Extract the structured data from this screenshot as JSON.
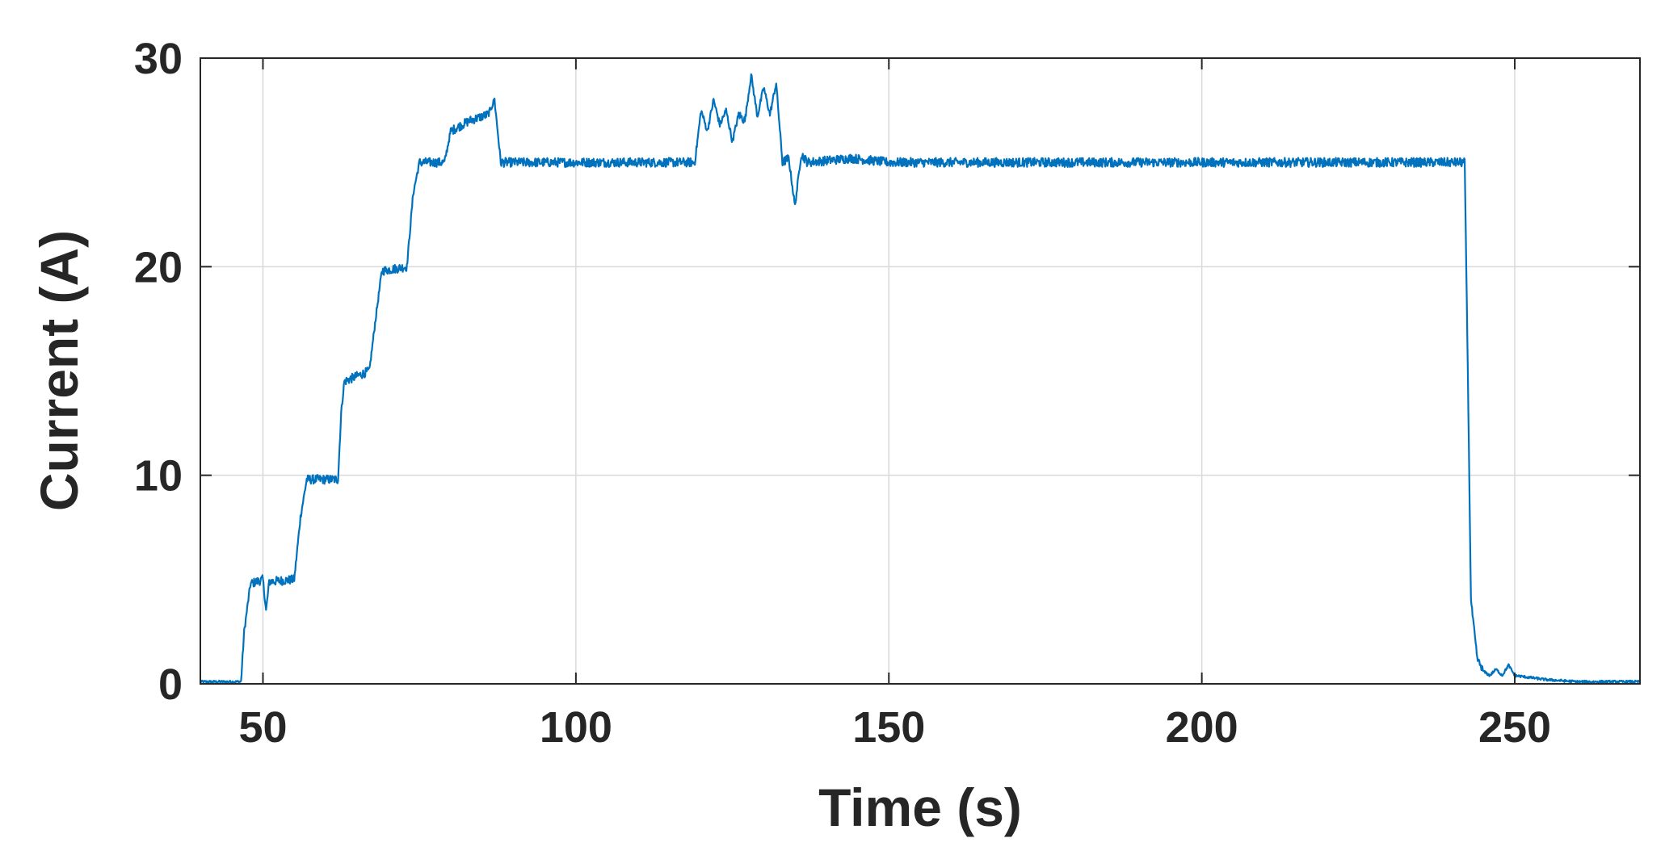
{
  "chart_data": {
    "type": "line",
    "title": "",
    "xlabel": "Time (s)",
    "ylabel": "Current (A)",
    "xlim": [
      40,
      270
    ],
    "ylim": [
      0,
      30
    ],
    "xticks": [
      50,
      100,
      150,
      200,
      250
    ],
    "yticks": [
      0,
      10,
      20,
      30
    ],
    "xtick_labels": [
      "50",
      "100",
      "150",
      "200",
      "250"
    ],
    "ytick_labels": [
      "0",
      "10",
      "20",
      "30"
    ],
    "grid": true,
    "legend": "none",
    "series": [
      {
        "color": "#0072BD",
        "points": [
          [
            40,
            0.1
          ],
          [
            46.5,
            0.1
          ],
          [
            47,
            2.5
          ],
          [
            48,
            4.8
          ],
          [
            50,
            5.0
          ],
          [
            50.5,
            3.5
          ],
          [
            51,
            4.9
          ],
          [
            55,
            5.0
          ],
          [
            56,
            8.0
          ],
          [
            57,
            9.8
          ],
          [
            62,
            9.8
          ],
          [
            62.5,
            13.0
          ],
          [
            63,
            14.5
          ],
          [
            67,
            15.0
          ],
          [
            68,
            17.5
          ],
          [
            69,
            19.8
          ],
          [
            73,
            20.0
          ],
          [
            74,
            23.5
          ],
          [
            75,
            25.0
          ],
          [
            79,
            25.0
          ],
          [
            80,
            26.5
          ],
          [
            83,
            27.0
          ],
          [
            86,
            27.3
          ],
          [
            87,
            28.0
          ],
          [
            88,
            25.0
          ],
          [
            100,
            25.0
          ],
          [
            110,
            25.0
          ],
          [
            119,
            25.0
          ],
          [
            120,
            27.5
          ],
          [
            121,
            26.5
          ],
          [
            122,
            28.0
          ],
          [
            123,
            26.8
          ],
          [
            124,
            27.5
          ],
          [
            125,
            26.0
          ],
          [
            126,
            27.3
          ],
          [
            127,
            27.0
          ],
          [
            128,
            29.2
          ],
          [
            129,
            27.2
          ],
          [
            130,
            28.6
          ],
          [
            131,
            27.3
          ],
          [
            132,
            28.8
          ],
          [
            133,
            25.0
          ],
          [
            134,
            25.2
          ],
          [
            135,
            22.9
          ],
          [
            136,
            25.4
          ],
          [
            137,
            25.0
          ],
          [
            144,
            25.2
          ],
          [
            150,
            25.0
          ],
          [
            200,
            25.0
          ],
          [
            242,
            25.0
          ],
          [
            242.5,
            15.0
          ],
          [
            243,
            4.0
          ],
          [
            244,
            1.2
          ],
          [
            245,
            0.6
          ],
          [
            246,
            0.4
          ],
          [
            247,
            0.7
          ],
          [
            248,
            0.4
          ],
          [
            249,
            0.9
          ],
          [
            250,
            0.4
          ],
          [
            255,
            0.2
          ],
          [
            260,
            0.1
          ],
          [
            270,
            0.1
          ]
        ]
      }
    ]
  }
}
